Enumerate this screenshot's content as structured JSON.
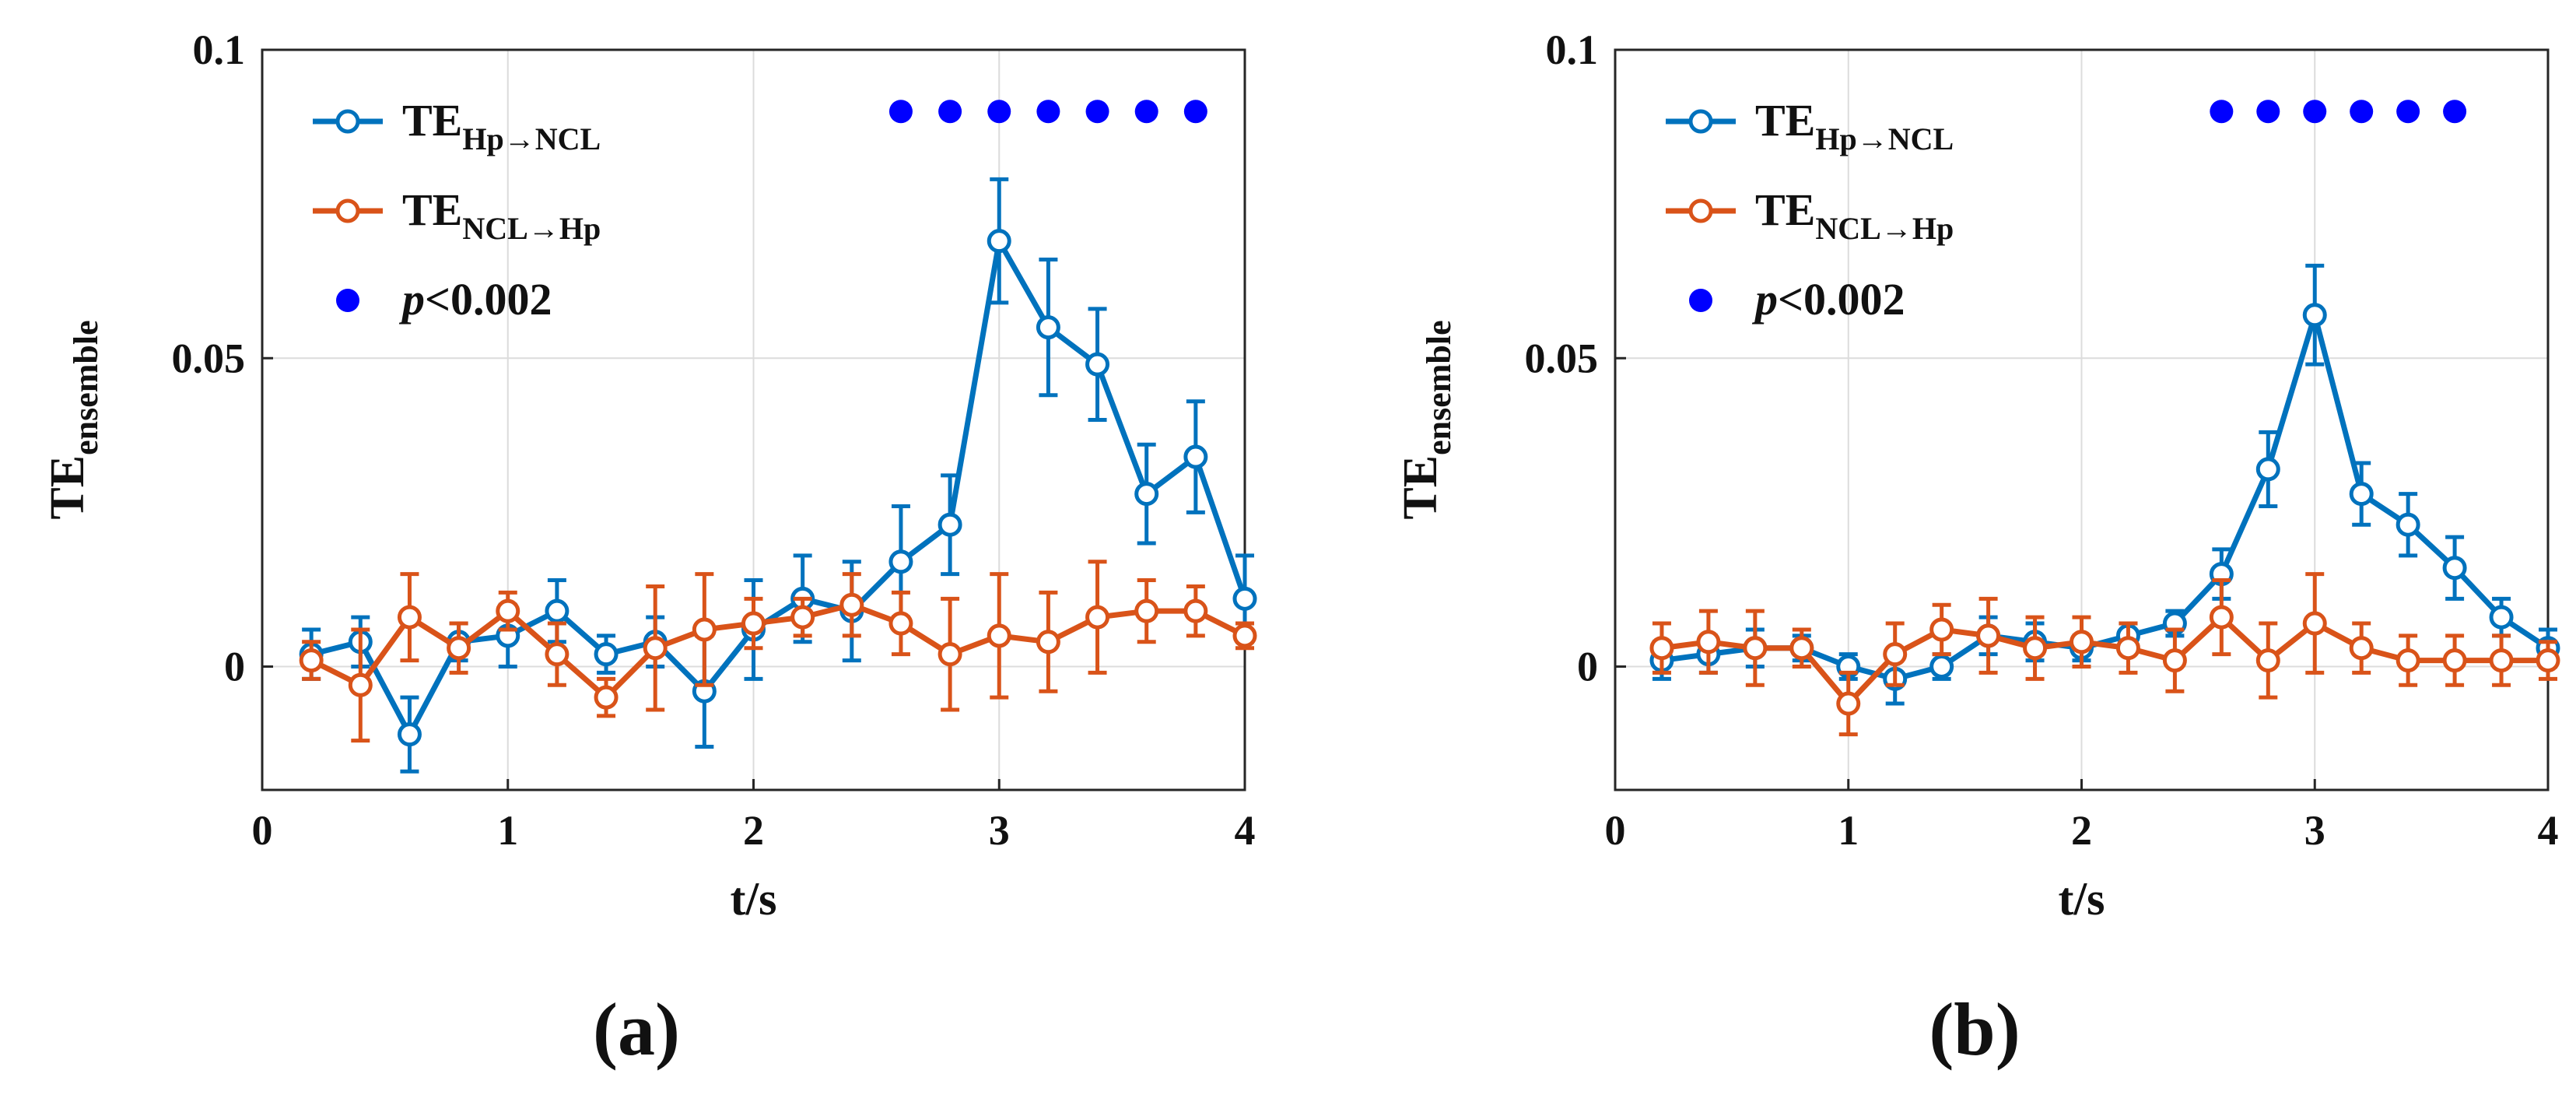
{
  "chart_data": [
    {
      "type": "line",
      "panel_label": "(a)",
      "xlabel": "t/s",
      "ylabel": {
        "base": "TE",
        "sub": "ensemble"
      },
      "xlim": [
        0,
        4
      ],
      "ylim": [
        -0.02,
        0.1
      ],
      "xticks": [
        0,
        1,
        2,
        3,
        4
      ],
      "xtick_labels": [
        "0",
        "1",
        "2",
        "3",
        "4"
      ],
      "yticks": [
        0,
        0.05,
        0.1
      ],
      "ytick_labels": [
        "0",
        "0.05",
        "0.1"
      ],
      "grid": true,
      "legend_position": "top-left",
      "x": [
        0.2,
        0.4,
        0.6,
        0.8,
        1.0,
        1.2,
        1.4,
        1.6,
        1.8,
        2.0,
        2.2,
        2.4,
        2.6,
        2.8,
        3.0,
        3.2,
        3.4,
        3.6,
        3.8,
        4.0
      ],
      "series": [
        {
          "name": "TE_Hp→NCL",
          "legend_base": "TE",
          "legend_sub": "Hp→NCL",
          "color": "#0072BD",
          "values": [
            0.002,
            0.004,
            -0.011,
            0.004,
            0.005,
            0.009,
            0.002,
            0.004,
            -0.004,
            0.006,
            0.011,
            0.009,
            0.017,
            0.023,
            0.069,
            0.055,
            0.049,
            0.028,
            0.034,
            0.011
          ],
          "errors": [
            0.004,
            0.004,
            0.006,
            0.003,
            0.005,
            0.005,
            0.003,
            0.004,
            0.009,
            0.008,
            0.007,
            0.008,
            0.009,
            0.008,
            0.01,
            0.011,
            0.009,
            0.008,
            0.009,
            0.007
          ]
        },
        {
          "name": "TE_NCL→Hp",
          "legend_base": "TE",
          "legend_sub": "NCL→Hp",
          "color": "#D95319",
          "values": [
            0.001,
            -0.003,
            0.008,
            0.003,
            0.009,
            0.002,
            -0.005,
            0.003,
            0.006,
            0.007,
            0.008,
            0.01,
            0.007,
            0.002,
            0.005,
            0.004,
            0.008,
            0.009,
            0.009,
            0.005
          ],
          "errors": [
            0.003,
            0.009,
            0.007,
            0.004,
            0.003,
            0.005,
            0.003,
            0.01,
            0.009,
            0.004,
            0.003,
            0.005,
            0.005,
            0.009,
            0.01,
            0.008,
            0.009,
            0.005,
            0.004,
            0.002
          ]
        }
      ],
      "significance": {
        "label_italic": "p",
        "label_rest": "<0.002",
        "color": "#0000FF",
        "y": 0.09,
        "x": [
          2.6,
          2.8,
          3.0,
          3.2,
          3.4,
          3.6,
          3.8
        ]
      }
    },
    {
      "type": "line",
      "panel_label": "(b)",
      "xlabel": "t/s",
      "ylabel": {
        "base": "TE",
        "sub": "ensemble"
      },
      "xlim": [
        0,
        4
      ],
      "ylim": [
        -0.02,
        0.1
      ],
      "xticks": [
        0,
        1,
        2,
        3,
        4
      ],
      "xtick_labels": [
        "0",
        "1",
        "2",
        "3",
        "4"
      ],
      "yticks": [
        0,
        0.05,
        0.1
      ],
      "ytick_labels": [
        "0",
        "0.05",
        "0.1"
      ],
      "grid": true,
      "legend_position": "top-left",
      "x": [
        0.2,
        0.4,
        0.6,
        0.8,
        1.0,
        1.2,
        1.4,
        1.6,
        1.8,
        2.0,
        2.2,
        2.4,
        2.6,
        2.8,
        3.0,
        3.2,
        3.4,
        3.6,
        3.8,
        4.0
      ],
      "series": [
        {
          "name": "TE_Hp→NCL",
          "legend_base": "TE",
          "legend_sub": "Hp→NCL",
          "color": "#0072BD",
          "values": [
            0.001,
            0.002,
            0.003,
            0.003,
            0.0,
            -0.002,
            0.0,
            0.005,
            0.004,
            0.003,
            0.005,
            0.007,
            0.015,
            0.032,
            0.057,
            0.028,
            0.023,
            0.016,
            0.008,
            0.003
          ],
          "errors": [
            0.003,
            0.003,
            0.003,
            0.002,
            0.002,
            0.004,
            0.002,
            0.003,
            0.003,
            0.002,
            0.002,
            0.002,
            0.004,
            0.006,
            0.008,
            0.005,
            0.005,
            0.005,
            0.003,
            0.003
          ]
        },
        {
          "name": "TE_NCL→Hp",
          "legend_base": "TE",
          "legend_sub": "NCL→Hp",
          "color": "#D95319",
          "values": [
            0.003,
            0.004,
            0.003,
            0.003,
            -0.006,
            0.002,
            0.006,
            0.005,
            0.003,
            0.004,
            0.003,
            0.001,
            0.008,
            0.001,
            0.007,
            0.003,
            0.001,
            0.001,
            0.001,
            0.001
          ],
          "errors": [
            0.004,
            0.005,
            0.006,
            0.003,
            0.005,
            0.005,
            0.004,
            0.006,
            0.005,
            0.004,
            0.004,
            0.005,
            0.006,
            0.006,
            0.008,
            0.004,
            0.004,
            0.004,
            0.004,
            0.003
          ]
        }
      ],
      "significance": {
        "label_italic": "p",
        "label_rest": "<0.002",
        "color": "#0000FF",
        "y": 0.09,
        "x": [
          2.6,
          2.8,
          3.0,
          3.2,
          3.4,
          3.6
        ]
      }
    }
  ]
}
